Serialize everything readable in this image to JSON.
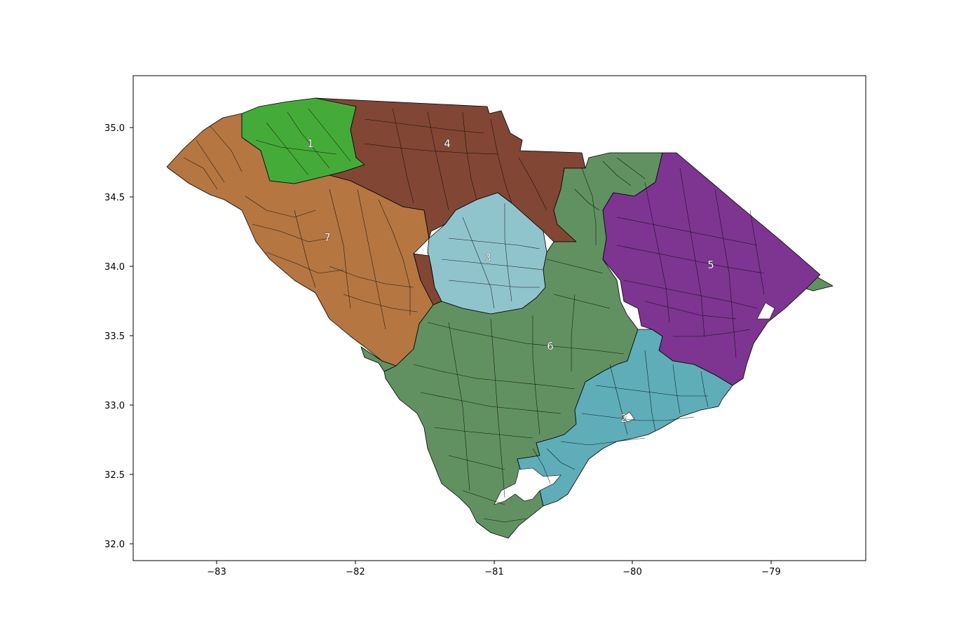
{
  "axes": {
    "x_ticks": [
      "−83",
      "−82",
      "−81",
      "−80",
      "−79"
    ],
    "y_ticks": [
      "32.0",
      "32.5",
      "33.0",
      "33.5",
      "34.0",
      "34.5",
      "35.0"
    ]
  },
  "districts": [
    {
      "id": "1",
      "label": "1",
      "color": "#45ab38"
    },
    {
      "id": "2",
      "label": "2",
      "color": "#5eadb9"
    },
    {
      "id": "3",
      "label": "3",
      "color": "#90c4cc"
    },
    {
      "id": "4",
      "label": "4",
      "color": "#824634"
    },
    {
      "id": "5",
      "label": "5",
      "color": "#7d3591"
    },
    {
      "id": "6",
      "label": "6",
      "color": "#619161"
    },
    {
      "id": "7",
      "label": "7",
      "color": "#b57642"
    }
  ]
}
